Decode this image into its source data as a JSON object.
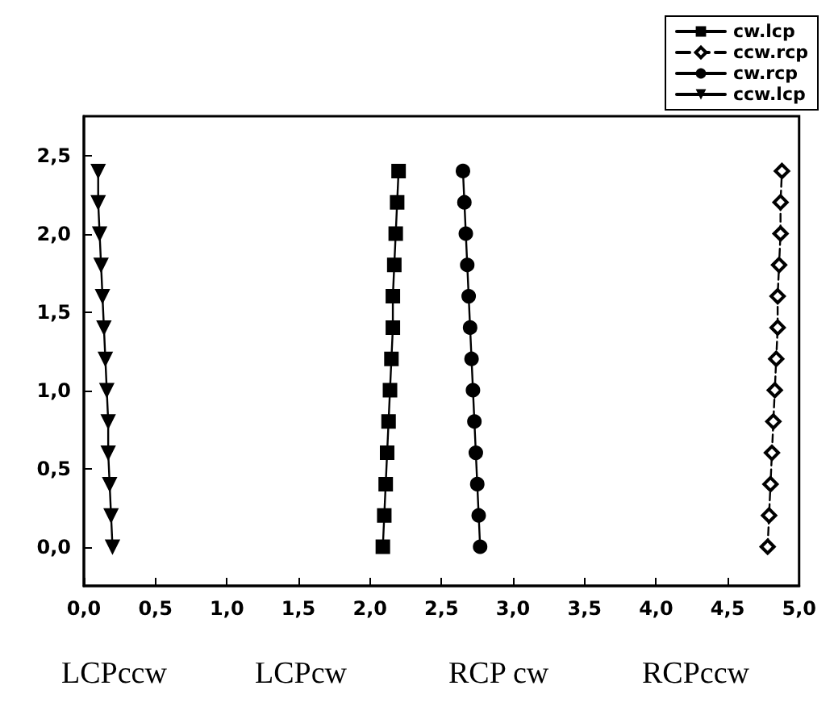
{
  "chart_data": {
    "type": "line",
    "series": [
      {
        "name": "cw.lcp",
        "color": "#000000",
        "marker": "square",
        "line_style": "solid",
        "x": [
          2.09,
          2.1,
          2.11,
          2.12,
          2.13,
          2.14,
          2.15,
          2.16,
          2.16,
          2.17,
          2.18,
          2.19,
          2.2
        ],
        "values": [
          0,
          0.2,
          0.4,
          0.6,
          0.8,
          1.0,
          1.2,
          1.4,
          1.6,
          1.8,
          2.0,
          2.2,
          2.4
        ]
      },
      {
        "name": "ccw.rcp",
        "color": "#000000",
        "marker": "diamond",
        "line_style": "dashed",
        "x": [
          4.78,
          4.79,
          4.8,
          4.81,
          4.82,
          4.83,
          4.84,
          4.85,
          4.85,
          4.86,
          4.87,
          4.87,
          4.88
        ],
        "values": [
          0,
          0.2,
          0.4,
          0.6,
          0.8,
          1.0,
          1.2,
          1.4,
          1.6,
          1.8,
          2.0,
          2.2,
          2.4
        ]
      },
      {
        "name": "cw.rcp",
        "color": "#000000",
        "marker": "circle",
        "line_style": "solid",
        "x": [
          2.77,
          2.76,
          2.75,
          2.74,
          2.73,
          2.72,
          2.71,
          2.7,
          2.69,
          2.68,
          2.67,
          2.66,
          2.65
        ],
        "values": [
          0,
          0.2,
          0.4,
          0.6,
          0.8,
          1.0,
          1.2,
          1.4,
          1.6,
          1.8,
          2.0,
          2.2,
          2.4
        ]
      },
      {
        "name": "ccw.lcp",
        "color": "#000000",
        "marker": "triangle",
        "line_style": "solid",
        "x": [
          0.2,
          0.19,
          0.18,
          0.17,
          0.17,
          0.16,
          0.15,
          0.14,
          0.13,
          0.12,
          0.11,
          0.1,
          0.1
        ],
        "values": [
          0,
          0.2,
          0.4,
          0.6,
          0.8,
          1.0,
          1.2,
          1.4,
          1.6,
          1.8,
          2.0,
          2.2,
          2.4
        ]
      }
    ],
    "xlim": [
      0,
      5
    ],
    "xticks": [
      {
        "value": 0,
        "label": "0,0"
      },
      {
        "value": 0.5,
        "label": "0,5"
      },
      {
        "value": 1,
        "label": "1,0"
      },
      {
        "value": 1.5,
        "label": "1,5"
      },
      {
        "value": 2,
        "label": "2,0"
      },
      {
        "value": 2.5,
        "label": "2,5"
      },
      {
        "value": 3,
        "label": "3,0"
      },
      {
        "value": 3.5,
        "label": "3,5"
      },
      {
        "value": 4,
        "label": "4,0"
      },
      {
        "value": 4.5,
        "label": "4,5"
      },
      {
        "value": 5,
        "label": "5,0"
      }
    ],
    "ylim": [
      -0.25,
      2.75
    ],
    "yticks": [
      {
        "value": 0,
        "label": "0,0"
      },
      {
        "value": 0.5,
        "label": "0,5"
      },
      {
        "value": 1,
        "label": "1,0"
      },
      {
        "value": 1.5,
        "label": "1,5"
      },
      {
        "value": 2,
        "label": "2,0"
      },
      {
        "value": 2.5,
        "label": "2,5"
      }
    ],
    "annotations": [
      "LCPccw",
      "LCPcw",
      "RCP cw",
      "RCPccw"
    ],
    "legend": "top right",
    "grid": false
  }
}
